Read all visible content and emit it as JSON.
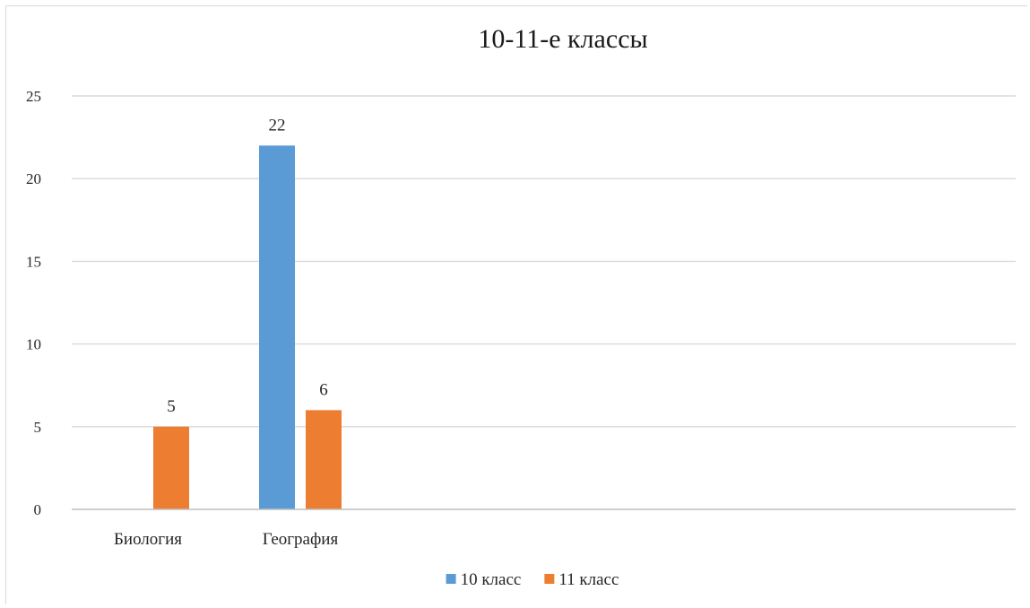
{
  "chart_data": {
    "type": "bar",
    "title": "10-11-е  классы",
    "categories": [
      "Биология",
      "География"
    ],
    "series": [
      {
        "name": "10 класс",
        "values": [
          0,
          22
        ],
        "color": "#5b9bd5",
        "show_zero": false
      },
      {
        "name": "11 класс",
        "values": [
          5,
          6
        ],
        "color": "#ed7d31",
        "show_zero": true
      }
    ],
    "ylim": [
      0,
      25
    ],
    "yticks": [
      0,
      5,
      10,
      15,
      20,
      25
    ],
    "grid": true,
    "legend": "bottom",
    "data_labels": true
  }
}
